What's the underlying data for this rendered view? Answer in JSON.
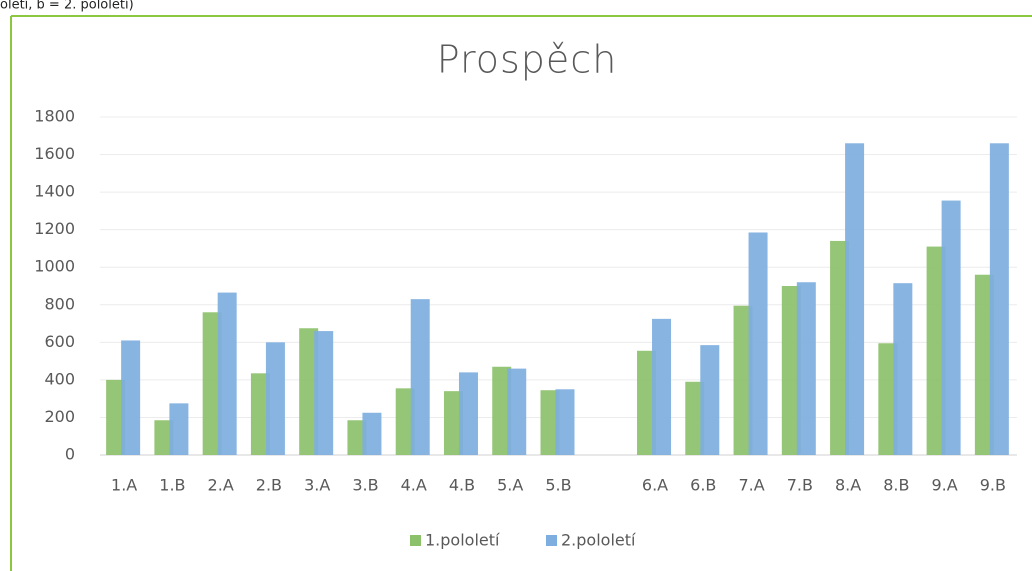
{
  "chart_data": {
    "type": "bar",
    "annotation": "oletí, b = 2. pololetí)",
    "title": "Prospěch",
    "categories": [
      "1.A",
      "1.B",
      "2.A",
      "2.B",
      "3.A",
      "3.B",
      "4.A",
      "4.B",
      "5.A",
      "5.B",
      null,
      "6.A",
      "6.B",
      "7.A",
      "7.B",
      "8.A",
      "8.B",
      "9.A",
      "9.B"
    ],
    "series": [
      {
        "name": "1.pololetí",
        "color": "#8cc06a",
        "values": [
          400,
          185,
          760,
          435,
          675,
          185,
          355,
          340,
          470,
          345,
          null,
          555,
          390,
          795,
          900,
          1140,
          595,
          1110,
          960
        ]
      },
      {
        "name": "2.pololetí",
        "color": "#7eaee0",
        "values": [
          610,
          275,
          865,
          600,
          660,
          225,
          830,
          440,
          460,
          350,
          null,
          725,
          585,
          1185,
          920,
          1660,
          915,
          1355,
          1660
        ]
      }
    ],
    "ylim": [
      0,
      1800
    ],
    "yticks": [
      0,
      200,
      400,
      600,
      800,
      1000,
      1200,
      1400,
      1600,
      1800
    ],
    "grid": true,
    "legend": "bottom"
  }
}
